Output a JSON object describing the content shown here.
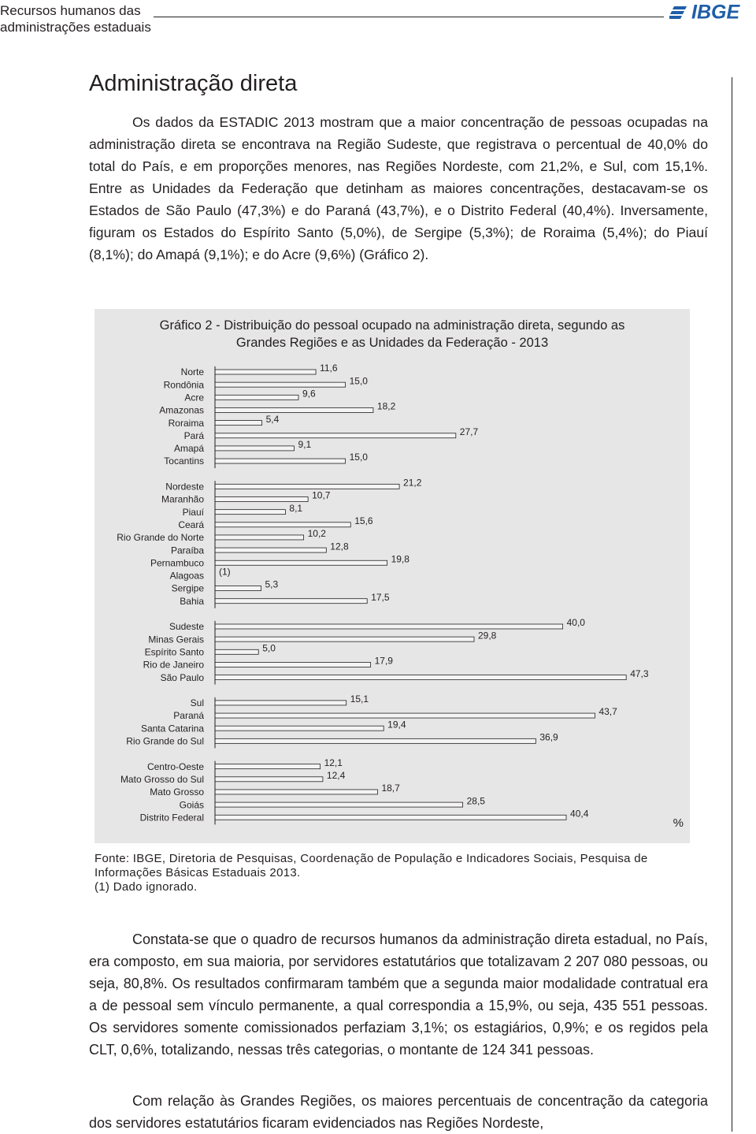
{
  "header": {
    "title_lines": [
      "Recursos humanos das",
      "administrações estaduais"
    ],
    "logo": "IBGE"
  },
  "section_title": "Administração direta",
  "paragraphs_top": [
    "Os dados da ESTADIC 2013 mostram que a maior concentração de pessoas ocupadas na administração direta se encontrava na Região Sudeste, que registrava o percentual de 40,0% do total do País, e em proporções menores, nas Regiões Nordeste, com 21,2%, e Sul, com 15,1%. Entre as Unidades da Federação que detinham as maiores concentrações, destacavam-se os Estados de São Paulo (47,3%) e do Paraná (43,7%), e o Distrito Federal (40,4%). Inversamente, figuram os Estados do Espírito Santo (5,0%), de Sergipe (5,3%); de Roraima (5,4%); do Piauí (8,1%); do Amapá (9,1%); e do Acre (9,6%) (Gráfico 2)."
  ],
  "chart_data": {
    "type": "bar",
    "orientation": "horizontal",
    "title": "Gráfico 2 - Distribuição do pessoal ocupado na administração direta, segundo as Grandes Regiões e as Unidades da Federação - 2013",
    "unit": "%",
    "color": "#f4f4f4",
    "groups": [
      {
        "categories": [
          "Norte",
          "Rondônia",
          "Acre",
          "Amazonas",
          "Roraima",
          "Pará",
          "Amapá",
          "Tocantins"
        ],
        "values": [
          11.6,
          15.0,
          9.6,
          18.2,
          5.4,
          27.7,
          9.1,
          15.0
        ],
        "value_labels": [
          "11,6",
          "15,0",
          "9,6",
          "18,2",
          "5,4",
          "27,7",
          "9,1",
          "15,0"
        ]
      },
      {
        "categories": [
          "Nordeste",
          "Maranhão",
          "Piauí",
          "Ceará",
          "Rio Grande do Norte",
          "Paraíba",
          "Pernambuco",
          "Alagoas",
          "Sergipe",
          "Bahia"
        ],
        "values": [
          21.2,
          10.7,
          8.1,
          15.6,
          10.2,
          12.8,
          19.8,
          null,
          5.3,
          17.5
        ],
        "value_labels": [
          "21,2",
          "10,7",
          "8,1",
          "15,6",
          "10,2",
          "12,8",
          "19,8",
          "(1)",
          "5,3",
          "17,5"
        ]
      },
      {
        "categories": [
          "Sudeste",
          "Minas Gerais",
          "Espírito Santo",
          "Rio de Janeiro",
          "São Paulo"
        ],
        "values": [
          40.0,
          29.8,
          5.0,
          17.9,
          47.3
        ],
        "value_labels": [
          "40,0",
          "29,8",
          "5,0",
          "17,9",
          "47,3"
        ]
      },
      {
        "categories": [
          "Sul",
          "Paraná",
          "Santa Catarina",
          "Rio Grande do Sul"
        ],
        "values": [
          15.1,
          43.7,
          19.4,
          36.9
        ],
        "value_labels": [
          "15,1",
          "43,7",
          "19,4",
          "36,9"
        ]
      },
      {
        "categories": [
          "Centro-Oeste",
          "Mato Grosso do Sul",
          "Mato Grosso",
          "Goiás",
          "Distrito Federal"
        ],
        "values": [
          12.1,
          12.4,
          18.7,
          28.5,
          40.4
        ],
        "value_labels": [
          "12,1",
          "12,4",
          "18,7",
          "28,5",
          "40,4"
        ]
      }
    ]
  },
  "footnotes": [
    "Fonte: IBGE, Diretoria de Pesquisas, Coordenação de População e Indicadores Sociais, Pesquisa de Informações Básicas Estaduais 2013.",
    "(1) Dado ignorado."
  ],
  "paragraphs_bottom": [
    "Constata-se que o quadro de recursos humanos da administração direta estadual, no País, era composto, em sua maioria, por servidores estatutários que totalizavam 2 207 080 pessoas, ou seja, 80,8%. Os resultados confirmaram também que a segunda maior modalidade contratual era a de pessoal sem vínculo permanente, a qual correspondia a 15,9%, ou seja, 435 551 pessoas. Os servidores somente comissionados perfaziam 3,1%; os estagiários, 0,9%; e os regidos pela CLT, 0,6%, totalizando, nessas três categorias, o montante de 124 341 pessoas.",
    "Com relação às Grandes Regiões, os maiores percentuais de concentração da categoria dos servidores estatutários ficaram evidenciados nas Regiões Nordeste,"
  ]
}
